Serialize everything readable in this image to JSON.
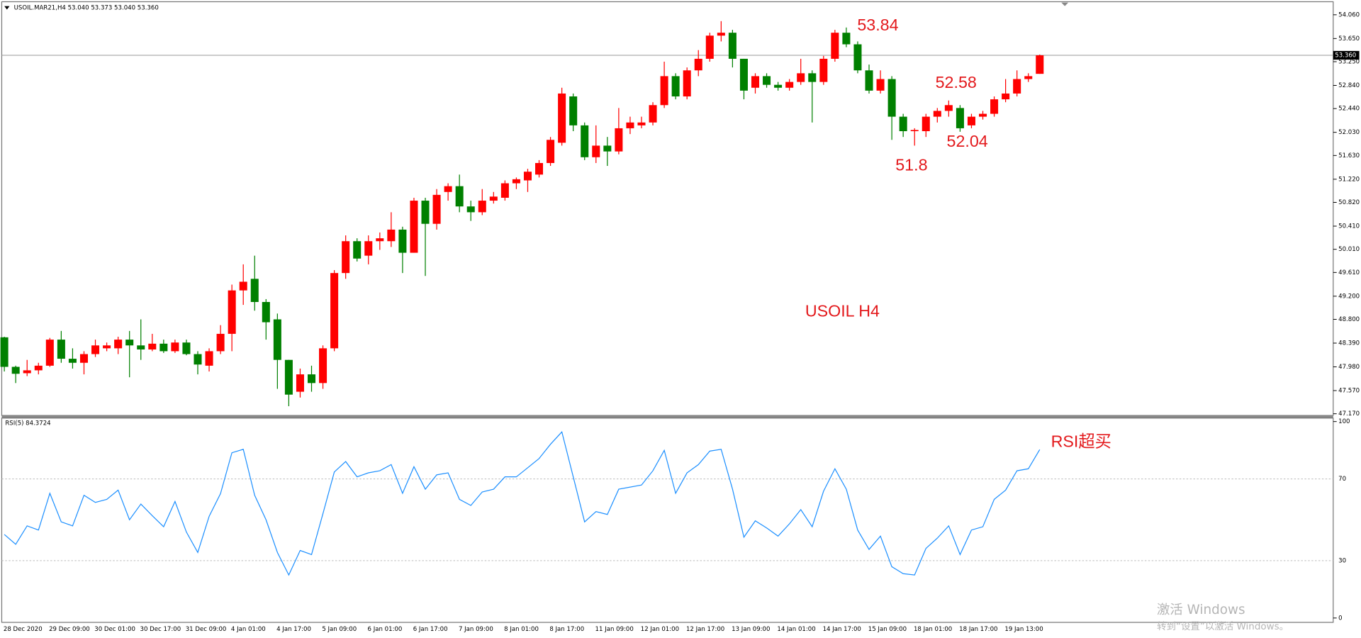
{
  "chart_data": [
    {
      "type": "candlestick",
      "title": "USOIL.MAR21,H4  53.040 53.373 53.040 53.360",
      "categories": [
        "28 Dec 2020",
        null,
        null,
        null,
        "29 Dec 09:00",
        null,
        null,
        null,
        "30 Dec 01:00",
        null,
        null,
        null,
        "30 Dec 17:00",
        null,
        null,
        null,
        "31 Dec 09:00",
        null,
        null,
        null,
        "4 Jan 01:00",
        null,
        null,
        null,
        "4 Jan 17:00",
        null,
        null,
        null,
        "5 Jan 09:00",
        null,
        null,
        null,
        "6 Jan 01:00",
        null,
        null,
        null,
        "6 Jan 17:00",
        null,
        null,
        null,
        "7 Jan 09:00",
        null,
        null,
        null,
        "8 Jan 01:00",
        null,
        null,
        null,
        "8 Jan 17:00",
        null,
        null,
        null,
        "11 Jan 09:00",
        null,
        null,
        null,
        "12 Jan 01:00",
        null,
        null,
        null,
        "12 Jan 17:00",
        null,
        null,
        null,
        "13 Jan 09:00",
        null,
        null,
        null,
        "14 Jan 01:00",
        null,
        null,
        null,
        "14 Jan 17:00",
        null,
        null,
        null,
        "15 Jan 09:00",
        null,
        null,
        null,
        "18 Jan 01:00",
        null,
        null,
        null,
        "18 Jan 17:00",
        null,
        null,
        null,
        "19 Jan 13:00",
        null,
        null,
        null
      ],
      "open": [
        48.49,
        47.98,
        47.87,
        47.92,
        48.0,
        48.45,
        48.12,
        48.05,
        48.2,
        48.3,
        48.3,
        48.45,
        48.35,
        48.28,
        48.38,
        48.25,
        48.4,
        48.2,
        48.0,
        48.25,
        48.55,
        49.3,
        49.5,
        49.1,
        48.8,
        48.1,
        47.55,
        47.85,
        47.7,
        48.3,
        49.6,
        50.15,
        49.9,
        50.15,
        50.15,
        50.35,
        49.95,
        50.85,
        50.45,
        51.0,
        51.1,
        50.75,
        50.65,
        50.85,
        50.9,
        51.15,
        51.2,
        51.3,
        51.5,
        51.85,
        52.65,
        52.15,
        51.6,
        51.8,
        51.7,
        52.1,
        52.15,
        52.2,
        52.5,
        53.0,
        52.65,
        53.1,
        53.3,
        53.7,
        53.75,
        53.3,
        52.8,
        53.0,
        52.85,
        52.8,
        52.9,
        53.05,
        52.9,
        53.3,
        53.75,
        53.55,
        53.1,
        52.75,
        52.95,
        52.3,
        52.05,
        52.05,
        52.3,
        52.4,
        52.45,
        52.15,
        52.3,
        52.35,
        52.6,
        52.7,
        52.95,
        53.04
      ],
      "high": [
        48.5,
        48.0,
        48.1,
        48.05,
        48.48,
        48.6,
        48.3,
        48.25,
        48.45,
        48.4,
        48.5,
        48.6,
        48.8,
        48.55,
        48.45,
        48.45,
        48.45,
        48.25,
        48.3,
        48.7,
        49.4,
        49.75,
        49.9,
        49.15,
        48.9,
        48.1,
        47.95,
        48.0,
        48.35,
        49.65,
        50.25,
        50.2,
        50.25,
        50.3,
        50.65,
        50.4,
        50.9,
        50.9,
        51.05,
        51.15,
        51.3,
        50.85,
        51.05,
        51.0,
        51.2,
        51.25,
        51.4,
        51.55,
        51.95,
        52.8,
        52.7,
        52.2,
        52.15,
        51.95,
        52.45,
        52.3,
        52.3,
        52.55,
        53.25,
        53.05,
        53.15,
        53.45,
        53.75,
        53.95,
        53.8,
        53.3,
        53.05,
        53.05,
        52.9,
        52.95,
        53.3,
        53.1,
        53.35,
        53.8,
        53.84,
        53.6,
        53.2,
        53.1,
        53.0,
        52.35,
        52.1,
        52.35,
        52.45,
        52.58,
        52.5,
        52.35,
        52.4,
        52.65,
        52.95,
        53.1,
        53.05,
        53.373
      ],
      "low": [
        47.9,
        47.7,
        47.82,
        47.85,
        47.98,
        48.05,
        47.95,
        47.85,
        48.15,
        48.25,
        48.2,
        47.8,
        48.1,
        48.25,
        48.22,
        48.22,
        48.18,
        47.85,
        47.9,
        48.2,
        48.25,
        49.05,
        48.95,
        48.45,
        47.6,
        47.3,
        47.45,
        47.55,
        47.6,
        48.25,
        49.5,
        49.8,
        49.75,
        50.0,
        50.05,
        49.6,
        49.95,
        49.55,
        50.35,
        50.85,
        50.65,
        50.5,
        50.6,
        50.8,
        50.85,
        51.05,
        51.0,
        51.25,
        51.45,
        51.8,
        52.05,
        51.55,
        51.5,
        51.45,
        51.65,
        52.0,
        52.1,
        52.15,
        52.45,
        52.6,
        52.6,
        53.0,
        53.25,
        53.6,
        53.15,
        52.6,
        52.7,
        52.8,
        52.75,
        52.75,
        52.85,
        52.2,
        52.85,
        53.25,
        53.5,
        53.05,
        52.7,
        52.7,
        51.9,
        51.95,
        51.8,
        51.95,
        52.2,
        52.3,
        52.04,
        52.1,
        52.25,
        52.3,
        52.55,
        52.65,
        52.9,
        53.04
      ],
      "close": [
        47.98,
        47.86,
        47.92,
        48.0,
        48.45,
        48.12,
        48.05,
        48.2,
        48.35,
        48.35,
        48.45,
        48.35,
        48.28,
        48.38,
        48.25,
        48.4,
        48.2,
        48.02,
        48.25,
        48.55,
        49.3,
        49.45,
        49.1,
        48.75,
        48.1,
        47.5,
        47.85,
        47.7,
        48.3,
        49.6,
        50.15,
        49.85,
        50.15,
        50.2,
        50.35,
        49.95,
        50.85,
        50.45,
        50.95,
        51.1,
        50.75,
        50.65,
        50.85,
        50.92,
        51.15,
        51.22,
        51.35,
        51.5,
        51.9,
        52.7,
        52.15,
        51.6,
        51.8,
        51.7,
        52.1,
        52.2,
        52.2,
        52.5,
        53.0,
        52.65,
        53.1,
        53.3,
        53.7,
        53.75,
        53.3,
        52.75,
        53.0,
        52.85,
        52.8,
        52.9,
        53.05,
        52.9,
        53.3,
        53.75,
        53.55,
        53.1,
        52.75,
        52.95,
        52.3,
        52.05,
        52.07,
        52.3,
        52.4,
        52.5,
        52.1,
        52.3,
        52.35,
        52.6,
        52.7,
        52.95,
        53.0,
        53.36
      ],
      "up_color": "#ff0000",
      "down_color": "#008000",
      "ylim": [
        47.17,
        54.06
      ],
      "yticks": [
        {
          "value": 47.17,
          "label": "47.170"
        },
        {
          "value": 47.57,
          "label": "47.570"
        },
        {
          "value": 47.98,
          "label": "47.980"
        },
        {
          "value": 48.39,
          "label": "48.390"
        },
        {
          "value": 48.8,
          "label": "48.800"
        },
        {
          "value": 49.2,
          "label": "49.200"
        },
        {
          "value": 49.61,
          "label": "49.610"
        },
        {
          "value": 50.01,
          "label": "50.010"
        },
        {
          "value": 50.41,
          "label": "50.410"
        },
        {
          "value": 50.82,
          "label": "50.820"
        },
        {
          "value": 51.22,
          "label": "51.220"
        },
        {
          "value": 51.63,
          "label": "51.630"
        },
        {
          "value": 52.03,
          "label": "52.030"
        },
        {
          "value": 52.44,
          "label": "52.440"
        },
        {
          "value": 52.84,
          "label": "52.840"
        },
        {
          "value": 53.25,
          "label": "53.250"
        },
        {
          "value": 53.65,
          "label": "53.650"
        },
        {
          "value": 54.06,
          "label": "54.060"
        }
      ],
      "last_price": {
        "value": 53.36,
        "label": "53.360"
      },
      "annotations": [
        {
          "text": "53.84"
        },
        {
          "text": "52.58"
        },
        {
          "text": "52.04"
        },
        {
          "text": "51.8"
        },
        {
          "text": "USOIL H4"
        }
      ]
    },
    {
      "type": "line",
      "title": "RSI(5) 84.3724",
      "values": [
        42.8,
        38,
        47,
        45,
        63,
        49,
        47,
        62,
        58.5,
        60,
        64.5,
        50,
        57.7,
        52,
        46.6,
        59,
        44,
        34,
        51.7,
        62.8,
        82.8,
        84.5,
        62,
        50,
        34,
        23,
        35,
        33,
        53,
        73.4,
        78.5,
        71,
        73,
        74,
        77,
        63,
        76,
        65,
        72,
        73,
        60,
        57,
        63.6,
        65,
        71,
        71,
        75.5,
        80,
        87,
        93,
        71,
        49,
        54,
        52.6,
        65,
        66,
        67,
        74,
        84,
        63,
        73,
        77,
        83.6,
        84.5,
        65,
        41.5,
        49.5,
        46,
        42,
        48,
        55,
        46.6,
        64,
        75,
        65,
        45,
        35.5,
        42,
        27,
        23.6,
        23,
        36,
        41,
        47,
        33,
        45,
        46.6,
        60,
        64.5,
        74,
        75,
        84.37
      ],
      "color": "#1e90ff",
      "ylim": [
        0,
        100
      ],
      "yticks": [
        0,
        30,
        70,
        100
      ],
      "annotations": [
        {
          "text": "RSI超买"
        }
      ]
    }
  ],
  "watermark": {
    "line1": "激活 Windows",
    "line2": "转到“设置”以激活 Windows。"
  }
}
